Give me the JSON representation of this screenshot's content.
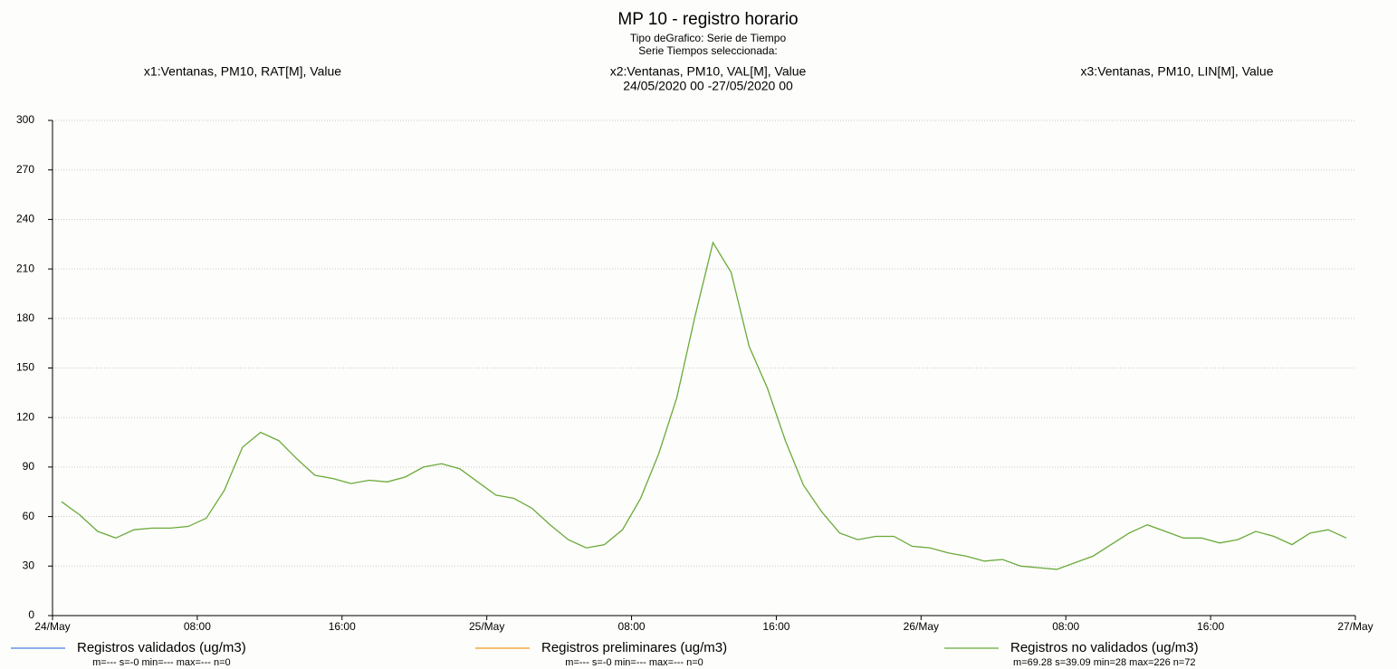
{
  "chart_data": {
    "type": "line",
    "title": "MP 10 - registro horario",
    "subtitle_lines": [
      "Tipo deGrafico: Serie de Tiempo",
      "Serie Tiempos seleccionada:",
      "x2:Ventanas, PM10, VAL[M], Value",
      "24/05/2020 00 -27/05/2020 00"
    ],
    "left_label": "x1:Ventanas, PM10, RAT[M], Value",
    "right_label": "x3:Ventanas, PM10, LIN[M], Value",
    "x": [
      0.5,
      1.5,
      2.5,
      3.5,
      4.5,
      5.5,
      6.5,
      7.5,
      8.5,
      9.5,
      10.5,
      11.5,
      12.5,
      13.5,
      14.5,
      15.5,
      16.5,
      17.5,
      18.5,
      19.5,
      20.5,
      21.5,
      22.5,
      23.5,
      24.5,
      25.5,
      26.5,
      27.5,
      28.5,
      29.5,
      30.5,
      31.5,
      32.5,
      33.5,
      34.5,
      35.5,
      36.5,
      37.5,
      38.5,
      39.5,
      40.5,
      41.5,
      42.5,
      43.5,
      44.5,
      45.5,
      46.5,
      47.5,
      48.5,
      49.5,
      50.5,
      51.5,
      52.5,
      53.5,
      54.5,
      55.5,
      56.5,
      57.5,
      58.5,
      59.5,
      60.5,
      61.5,
      62.5,
      63.5,
      64.5,
      65.5,
      66.5,
      67.5,
      68.5,
      69.5,
      70.5,
      71.5
    ],
    "series": [
      {
        "name": "Registros validados (ug/m3)",
        "color": "#4a7fe0",
        "stats": "m=--- s=-0 min=--- max=--- n=0",
        "values": [
          null,
          null,
          null,
          null,
          null,
          null,
          null,
          null,
          null,
          null,
          null,
          null,
          null,
          null,
          null,
          null,
          null,
          null,
          null,
          null,
          null,
          null,
          null,
          null,
          null,
          null,
          null,
          null,
          null,
          null,
          null,
          null,
          null,
          null,
          null,
          null,
          null,
          null,
          null,
          null,
          null,
          null,
          null,
          null,
          null,
          null,
          null,
          null,
          null,
          null,
          null,
          null,
          null,
          null,
          null,
          null,
          null,
          null,
          null,
          null,
          null,
          null,
          null,
          null,
          null,
          null,
          null,
          null,
          null,
          null,
          null,
          null
        ]
      },
      {
        "name": "Registros preliminares (ug/m3)",
        "color": "#f39a1a",
        "stats": "m=--- s=-0 min=--- max=--- n=0",
        "values": [
          null,
          null,
          null,
          null,
          null,
          null,
          null,
          null,
          null,
          null,
          null,
          null,
          null,
          null,
          null,
          null,
          null,
          null,
          null,
          null,
          null,
          null,
          null,
          null,
          null,
          null,
          null,
          null,
          null,
          null,
          null,
          null,
          null,
          null,
          null,
          null,
          null,
          null,
          null,
          null,
          null,
          null,
          null,
          null,
          null,
          null,
          null,
          null,
          null,
          null,
          null,
          null,
          null,
          null,
          null,
          null,
          null,
          null,
          null,
          null,
          null,
          null,
          null,
          null,
          null,
          null,
          null,
          null,
          null,
          null,
          null,
          null
        ]
      },
      {
        "name": "Registros no validados (ug/m3)",
        "color": "#6aaa3a",
        "stats": "m=69.28 s=39.09 min=28 max=226 n=72",
        "values": [
          69,
          61,
          51,
          47,
          52,
          53,
          53,
          54,
          59,
          76,
          102,
          111,
          106,
          95,
          85,
          83,
          80,
          82,
          81,
          84,
          90,
          92,
          89,
          81,
          73,
          71,
          65,
          55,
          46,
          41,
          43,
          52,
          71,
          98,
          132,
          181,
          226,
          208,
          163,
          138,
          106,
          79,
          63,
          50,
          46,
          48,
          48,
          42,
          41,
          38,
          36,
          33,
          34,
          30,
          29,
          28,
          32,
          36,
          43,
          50,
          55,
          51,
          47,
          47,
          44,
          46,
          51,
          48,
          43,
          50,
          52,
          47
        ]
      }
    ],
    "xlim": [
      0,
      72
    ],
    "xticks": [
      {
        "value": 0,
        "label": "24/May"
      },
      {
        "value": 8,
        "label": "08:00"
      },
      {
        "value": 16,
        "label": "16:00"
      },
      {
        "value": 24,
        "label": "25/May"
      },
      {
        "value": 32,
        "label": "08:00"
      },
      {
        "value": 40,
        "label": "16:00"
      },
      {
        "value": 48,
        "label": "26/May"
      },
      {
        "value": 56,
        "label": "08:00"
      },
      {
        "value": 64,
        "label": "16:00"
      },
      {
        "value": 72,
        "label": "27/May"
      }
    ],
    "ylim": [
      0,
      300
    ],
    "yticks": [
      0,
      30,
      60,
      90,
      120,
      150,
      180,
      210,
      240,
      270,
      300
    ],
    "grid": true
  }
}
